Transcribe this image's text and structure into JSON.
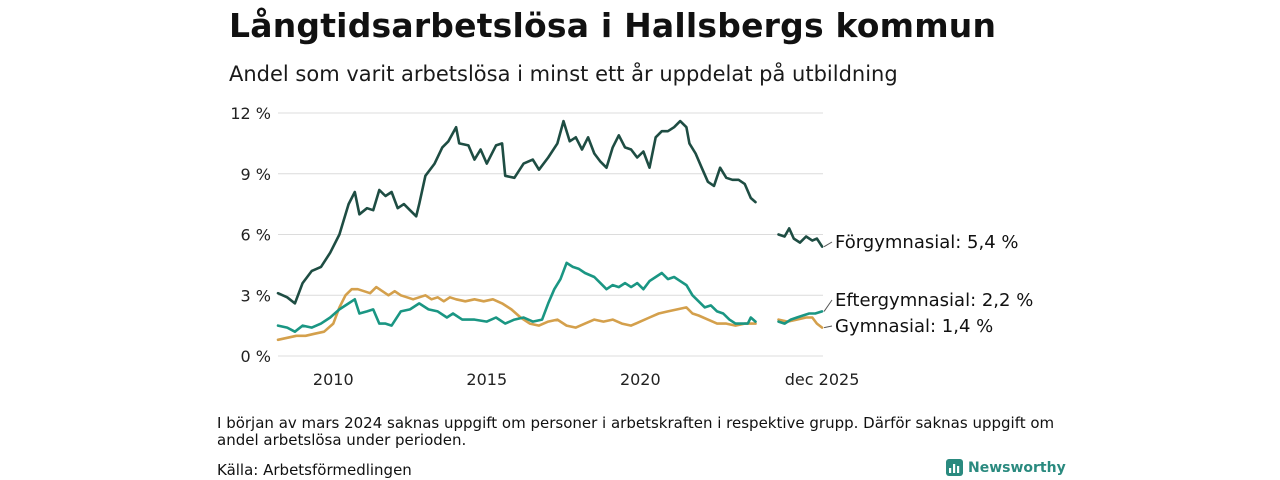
{
  "title": "Långtidsarbetslösa i Hallsbergs kommun",
  "subtitle": "Andel som varit arbetslösa i minst ett år uppdelat på utbildning",
  "note": "I början av mars 2024 saknas uppgift om personer i arbetskraften i respektive grupp. Därför saknas uppgift om andel arbetslösa under perioden.",
  "source": "Källa: Arbetsförmedlingen",
  "brand": "Newsworthy",
  "colors": {
    "forgymnasial": "#1e4d43",
    "eftergymnasial": "#1a9683",
    "gymnasial": "#d4a04c",
    "grid": "#dcdcdc",
    "brand": "#2a8a7f"
  },
  "chart_data": {
    "type": "line",
    "title": "Långtidsarbetslösa i Hallsbergs kommun",
    "xlabel": "",
    "ylabel": "",
    "xlim": [
      2008.2,
      2025.95
    ],
    "ylim": [
      0,
      12
    ],
    "yticks": [
      0,
      3,
      6,
      9,
      12
    ],
    "ytick_labels": [
      "0 %",
      "3 %",
      "6 %",
      "9 %",
      "12 %"
    ],
    "xticks": [
      2010,
      2015,
      2020,
      2025.92
    ],
    "xtick_labels": [
      "2010",
      "2015",
      "2020",
      "dec 2025"
    ],
    "gap": [
      2023.85,
      2024.5
    ],
    "series": [
      {
        "name": "Förgymnasial",
        "label": "Förgymnasial: 5,4 %",
        "color": "#1e4d43",
        "points": [
          [
            2008.2,
            3.1
          ],
          [
            2008.5,
            2.9
          ],
          [
            2008.75,
            2.6
          ],
          [
            2009.0,
            3.6
          ],
          [
            2009.3,
            4.2
          ],
          [
            2009.6,
            4.4
          ],
          [
            2009.9,
            5.1
          ],
          [
            2010.2,
            6.0
          ],
          [
            2010.5,
            7.5
          ],
          [
            2010.7,
            8.1
          ],
          [
            2010.85,
            7.0
          ],
          [
            2011.1,
            7.3
          ],
          [
            2011.3,
            7.2
          ],
          [
            2011.5,
            8.2
          ],
          [
            2011.7,
            7.9
          ],
          [
            2011.9,
            8.1
          ],
          [
            2012.1,
            7.3
          ],
          [
            2012.3,
            7.5
          ],
          [
            2012.5,
            7.2
          ],
          [
            2012.7,
            6.9
          ],
          [
            2012.8,
            7.5
          ],
          [
            2013.0,
            8.9
          ],
          [
            2013.3,
            9.5
          ],
          [
            2013.55,
            10.3
          ],
          [
            2013.75,
            10.6
          ],
          [
            2014.0,
            11.3
          ],
          [
            2014.1,
            10.5
          ],
          [
            2014.4,
            10.4
          ],
          [
            2014.6,
            9.7
          ],
          [
            2014.8,
            10.2
          ],
          [
            2015.0,
            9.5
          ],
          [
            2015.3,
            10.4
          ],
          [
            2015.5,
            10.5
          ],
          [
            2015.6,
            8.9
          ],
          [
            2015.9,
            8.8
          ],
          [
            2016.2,
            9.5
          ],
          [
            2016.5,
            9.7
          ],
          [
            2016.7,
            9.2
          ],
          [
            2017.0,
            9.8
          ],
          [
            2017.3,
            10.5
          ],
          [
            2017.5,
            11.6
          ],
          [
            2017.7,
            10.6
          ],
          [
            2017.9,
            10.8
          ],
          [
            2018.1,
            10.2
          ],
          [
            2018.3,
            10.8
          ],
          [
            2018.5,
            10.0
          ],
          [
            2018.7,
            9.6
          ],
          [
            2018.9,
            9.3
          ],
          [
            2019.1,
            10.3
          ],
          [
            2019.3,
            10.9
          ],
          [
            2019.5,
            10.3
          ],
          [
            2019.7,
            10.2
          ],
          [
            2019.9,
            9.8
          ],
          [
            2020.1,
            10.1
          ],
          [
            2020.3,
            9.3
          ],
          [
            2020.5,
            10.8
          ],
          [
            2020.7,
            11.1
          ],
          [
            2020.9,
            11.1
          ],
          [
            2021.1,
            11.3
          ],
          [
            2021.3,
            11.6
          ],
          [
            2021.5,
            11.3
          ],
          [
            2021.6,
            10.5
          ],
          [
            2021.8,
            10.0
          ],
          [
            2022.0,
            9.3
          ],
          [
            2022.2,
            8.6
          ],
          [
            2022.4,
            8.4
          ],
          [
            2022.6,
            9.3
          ],
          [
            2022.8,
            8.8
          ],
          [
            2023.0,
            8.7
          ],
          [
            2023.2,
            8.7
          ],
          [
            2023.4,
            8.5
          ],
          [
            2023.6,
            7.8
          ],
          [
            2023.75,
            7.6
          ],
          [
            2024.5,
            6.0
          ],
          [
            2024.7,
            5.9
          ],
          [
            2024.85,
            6.3
          ],
          [
            2025.0,
            5.8
          ],
          [
            2025.2,
            5.6
          ],
          [
            2025.4,
            5.9
          ],
          [
            2025.6,
            5.7
          ],
          [
            2025.75,
            5.8
          ],
          [
            2025.92,
            5.4
          ]
        ]
      },
      {
        "name": "Eftergymnasial",
        "label": "Eftergymnasial: 2,2 %",
        "color": "#1a9683",
        "points": [
          [
            2008.2,
            1.5
          ],
          [
            2008.5,
            1.4
          ],
          [
            2008.75,
            1.2
          ],
          [
            2009.0,
            1.5
          ],
          [
            2009.3,
            1.4
          ],
          [
            2009.6,
            1.6
          ],
          [
            2009.9,
            1.9
          ],
          [
            2010.2,
            2.3
          ],
          [
            2010.5,
            2.6
          ],
          [
            2010.7,
            2.8
          ],
          [
            2010.85,
            2.1
          ],
          [
            2011.1,
            2.2
          ],
          [
            2011.3,
            2.3
          ],
          [
            2011.5,
            1.6
          ],
          [
            2011.7,
            1.6
          ],
          [
            2011.9,
            1.5
          ],
          [
            2012.2,
            2.2
          ],
          [
            2012.5,
            2.3
          ],
          [
            2012.8,
            2.6
          ],
          [
            2013.1,
            2.3
          ],
          [
            2013.4,
            2.2
          ],
          [
            2013.7,
            1.9
          ],
          [
            2013.9,
            2.1
          ],
          [
            2014.2,
            1.8
          ],
          [
            2014.6,
            1.8
          ],
          [
            2015.0,
            1.7
          ],
          [
            2015.3,
            1.9
          ],
          [
            2015.6,
            1.6
          ],
          [
            2015.9,
            1.8
          ],
          [
            2016.2,
            1.9
          ],
          [
            2016.5,
            1.7
          ],
          [
            2016.8,
            1.8
          ],
          [
            2017.0,
            2.6
          ],
          [
            2017.2,
            3.3
          ],
          [
            2017.4,
            3.8
          ],
          [
            2017.6,
            4.6
          ],
          [
            2017.8,
            4.4
          ],
          [
            2018.0,
            4.3
          ],
          [
            2018.2,
            4.1
          ],
          [
            2018.5,
            3.9
          ],
          [
            2018.7,
            3.6
          ],
          [
            2018.9,
            3.3
          ],
          [
            2019.1,
            3.5
          ],
          [
            2019.3,
            3.4
          ],
          [
            2019.5,
            3.6
          ],
          [
            2019.7,
            3.4
          ],
          [
            2019.9,
            3.6
          ],
          [
            2020.1,
            3.3
          ],
          [
            2020.3,
            3.7
          ],
          [
            2020.5,
            3.9
          ],
          [
            2020.7,
            4.1
          ],
          [
            2020.9,
            3.8
          ],
          [
            2021.1,
            3.9
          ],
          [
            2021.3,
            3.7
          ],
          [
            2021.5,
            3.5
          ],
          [
            2021.7,
            3.0
          ],
          [
            2021.9,
            2.7
          ],
          [
            2022.1,
            2.4
          ],
          [
            2022.3,
            2.5
          ],
          [
            2022.5,
            2.2
          ],
          [
            2022.7,
            2.1
          ],
          [
            2022.9,
            1.8
          ],
          [
            2023.1,
            1.6
          ],
          [
            2023.3,
            1.6
          ],
          [
            2023.5,
            1.6
          ],
          [
            2023.6,
            1.9
          ],
          [
            2023.75,
            1.7
          ],
          [
            2024.5,
            1.7
          ],
          [
            2024.7,
            1.6
          ],
          [
            2024.9,
            1.8
          ],
          [
            2025.1,
            1.9
          ],
          [
            2025.3,
            2.0
          ],
          [
            2025.5,
            2.1
          ],
          [
            2025.7,
            2.1
          ],
          [
            2025.92,
            2.2
          ]
        ]
      },
      {
        "name": "Gymnasial",
        "label": "Gymnasial: 1,4 %",
        "color": "#d4a04c",
        "points": [
          [
            2008.2,
            0.8
          ],
          [
            2008.5,
            0.9
          ],
          [
            2008.8,
            1.0
          ],
          [
            2009.1,
            1.0
          ],
          [
            2009.4,
            1.1
          ],
          [
            2009.7,
            1.2
          ],
          [
            2010.0,
            1.6
          ],
          [
            2010.2,
            2.4
          ],
          [
            2010.4,
            3.0
          ],
          [
            2010.6,
            3.3
          ],
          [
            2010.8,
            3.3
          ],
          [
            2011.0,
            3.2
          ],
          [
            2011.2,
            3.1
          ],
          [
            2011.4,
            3.4
          ],
          [
            2011.6,
            3.2
          ],
          [
            2011.8,
            3.0
          ],
          [
            2012.0,
            3.2
          ],
          [
            2012.2,
            3.0
          ],
          [
            2012.4,
            2.9
          ],
          [
            2012.6,
            2.8
          ],
          [
            2012.8,
            2.9
          ],
          [
            2013.0,
            3.0
          ],
          [
            2013.2,
            2.8
          ],
          [
            2013.4,
            2.9
          ],
          [
            2013.6,
            2.7
          ],
          [
            2013.8,
            2.9
          ],
          [
            2014.0,
            2.8
          ],
          [
            2014.3,
            2.7
          ],
          [
            2014.6,
            2.8
          ],
          [
            2014.9,
            2.7
          ],
          [
            2015.2,
            2.8
          ],
          [
            2015.5,
            2.6
          ],
          [
            2015.8,
            2.3
          ],
          [
            2016.1,
            1.9
          ],
          [
            2016.4,
            1.6
          ],
          [
            2016.7,
            1.5
          ],
          [
            2017.0,
            1.7
          ],
          [
            2017.3,
            1.8
          ],
          [
            2017.6,
            1.5
          ],
          [
            2017.9,
            1.4
          ],
          [
            2018.2,
            1.6
          ],
          [
            2018.5,
            1.8
          ],
          [
            2018.8,
            1.7
          ],
          [
            2019.1,
            1.8
          ],
          [
            2019.4,
            1.6
          ],
          [
            2019.7,
            1.5
          ],
          [
            2020.0,
            1.7
          ],
          [
            2020.3,
            1.9
          ],
          [
            2020.6,
            2.1
          ],
          [
            2020.9,
            2.2
          ],
          [
            2021.2,
            2.3
          ],
          [
            2021.5,
            2.4
          ],
          [
            2021.7,
            2.1
          ],
          [
            2021.9,
            2.0
          ],
          [
            2022.2,
            1.8
          ],
          [
            2022.5,
            1.6
          ],
          [
            2022.8,
            1.6
          ],
          [
            2023.1,
            1.5
          ],
          [
            2023.4,
            1.6
          ],
          [
            2023.75,
            1.6
          ],
          [
            2024.5,
            1.8
          ],
          [
            2024.8,
            1.7
          ],
          [
            2025.1,
            1.8
          ],
          [
            2025.4,
            1.9
          ],
          [
            2025.6,
            1.9
          ],
          [
            2025.75,
            1.6
          ],
          [
            2025.92,
            1.4
          ]
        ]
      }
    ]
  }
}
